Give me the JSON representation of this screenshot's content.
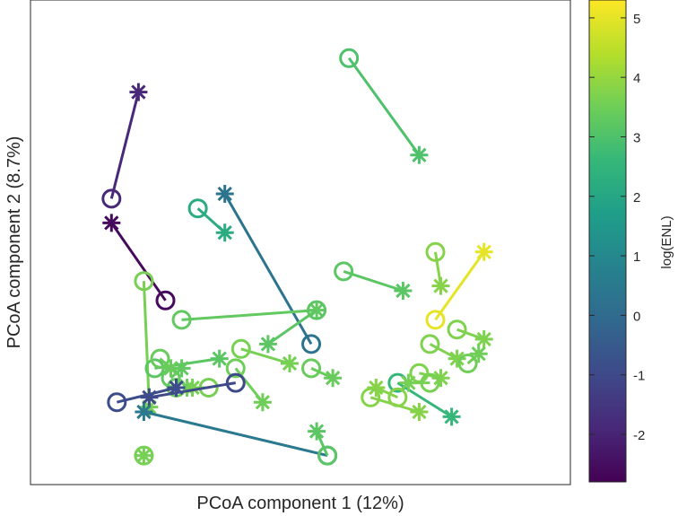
{
  "chart_data": {
    "type": "scatter",
    "title": "",
    "xlabel": "PCoA component 1 (12%)",
    "ylabel": "PCoA component 2 (8.7%)",
    "xlim": [
      0,
      100
    ],
    "ylim": [
      0,
      100
    ],
    "grid": false,
    "legend": "none",
    "markers": {
      "circle": "open circle",
      "star": "asterisk"
    },
    "colorbar": {
      "label": "log(ENL)",
      "colormap": "viridis",
      "range": [
        -2.8,
        5.3
      ],
      "ticks": [
        -2,
        -1,
        0,
        1,
        2,
        3,
        4,
        5
      ],
      "tick_labels": [
        "-2",
        "-1",
        "0",
        "1",
        "2",
        "3",
        "4",
        "5"
      ],
      "colors": [
        "#440154",
        "#482878",
        "#3e4989",
        "#31688e",
        "#26828e",
        "#1f9e89",
        "#35b779",
        "#6ece58",
        "#b5de2b",
        "#fde725"
      ]
    },
    "pairs": [
      {
        "circle": [
          59,
          88
        ],
        "star": [
          72,
          68
        ],
        "c": 3.0
      },
      {
        "circle": [
          15,
          59
        ],
        "star": [
          20,
          81
        ],
        "c": -1.9
      },
      {
        "circle": [
          25,
          38
        ],
        "star": [
          15,
          54
        ],
        "c": -2.6
      },
      {
        "circle": [
          31,
          57
        ],
        "star": [
          36,
          52
        ],
        "c": 2.2
      },
      {
        "circle": [
          52,
          29
        ],
        "star": [
          36,
          60
        ],
        "c": 0.3
      },
      {
        "circle": [
          21,
          42
        ],
        "star": [
          22,
          16
        ],
        "c": 3.6
      },
      {
        "circle": [
          28,
          34
        ],
        "star": [
          53,
          36
        ],
        "c": 3.3
      },
      {
        "circle": [
          39,
          28
        ],
        "star": [
          48,
          25
        ],
        "c": 3.6
      },
      {
        "circle": [
          58,
          44
        ],
        "star": [
          69,
          40
        ],
        "c": 3.2
      },
      {
        "circle": [
          53,
          36
        ],
        "star": [
          44,
          29
        ],
        "c": 3.2
      },
      {
        "circle": [
          38,
          24
        ],
        "star": [
          43,
          17
        ],
        "c": 3.5
      },
      {
        "circle": [
          52,
          24
        ],
        "star": [
          56,
          22
        ],
        "c": 3.4
      },
      {
        "circle": [
          75,
          48
        ],
        "star": [
          76,
          41
        ],
        "c": 3.8
      },
      {
        "circle": [
          75,
          34
        ],
        "star": [
          84,
          48
        ],
        "c": 5.0
      },
      {
        "circle": [
          74,
          29
        ],
        "star": [
          79,
          26
        ],
        "c": 3.7
      },
      {
        "circle": [
          79,
          32
        ],
        "star": [
          84,
          30
        ],
        "c": 3.7
      },
      {
        "circle": [
          72,
          23
        ],
        "star": [
          76,
          22
        ],
        "c": 3.7
      },
      {
        "circle": [
          81,
          25
        ],
        "star": [
          83,
          27
        ],
        "c": 3.5
      },
      {
        "circle": [
          68,
          21
        ],
        "star": [
          78,
          14
        ],
        "c": 2.6
      },
      {
        "circle": [
          63,
          18
        ],
        "star": [
          72,
          15
        ],
        "c": 3.8
      },
      {
        "circle": [
          68,
          18
        ],
        "star": [
          64,
          20
        ],
        "c": 3.8
      },
      {
        "circle": [
          74,
          21
        ],
        "star": [
          70,
          21
        ],
        "c": 3.6
      },
      {
        "circle": [
          23,
          24
        ],
        "star": [
          35,
          26
        ],
        "c": 3.2
      },
      {
        "circle": [
          26,
          22
        ],
        "star": [
          28,
          24
        ],
        "c": 3.3
      },
      {
        "circle": [
          24,
          26
        ],
        "star": [
          26,
          24
        ],
        "c": 3.4
      },
      {
        "circle": [
          27,
          20
        ],
        "star": [
          29,
          20
        ],
        "c": 3.4
      },
      {
        "circle": [
          33,
          20
        ],
        "star": [
          30,
          20
        ],
        "c": 3.6
      },
      {
        "circle": [
          38,
          21
        ],
        "star": [
          22,
          18
        ],
        "c": -1.0
      },
      {
        "circle": [
          16,
          17
        ],
        "star": [
          27,
          20
        ],
        "c": -0.9
      },
      {
        "circle": [
          55,
          6
        ],
        "star": [
          21,
          15
        ],
        "c": 0.5
      },
      {
        "circle": [
          55,
          6
        ],
        "star": [
          53,
          11
        ],
        "c": 3.2
      },
      {
        "circle": [
          21,
          6
        ],
        "star": [
          21,
          6
        ],
        "c": 3.6
      }
    ]
  }
}
